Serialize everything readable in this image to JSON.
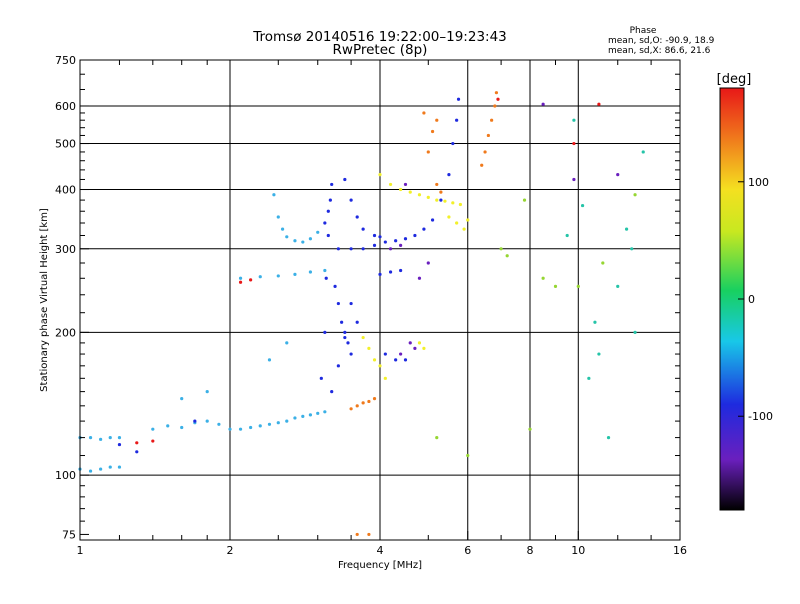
{
  "header": {
    "title_line1": "Tromsø 20140516 19:22:00–19:23:43",
    "title_line2": "RwPretec (8p)",
    "phase_heading": "Phase",
    "phase_stat_o": "mean, sd,O: -90.9, 18.9",
    "phase_stat_x": "mean, sd,X:  86.6, 21.6"
  },
  "colorbar": {
    "unit_label": "[deg]",
    "tick_labels": [
      "100",
      "0",
      "-100"
    ],
    "tick_values": [
      100,
      0,
      -100
    ],
    "range": [
      -180,
      180
    ],
    "colormap": "rainbow: black-purple-blue-cyan-green-yellow-orange-red"
  },
  "chart_data": {
    "type": "scatter",
    "xlabel": "Frequency [MHz]",
    "ylabel": "Stationary phase Virtual Height [km]",
    "x_scale": "log",
    "y_scale": "log",
    "xlim": [
      1,
      16
    ],
    "ylim": [
      73,
      750
    ],
    "x_tick_labels": [
      "1",
      "2",
      "4",
      "6",
      "8",
      "10",
      "16"
    ],
    "x_tick_values": [
      1,
      2,
      4,
      6,
      8,
      10,
      16
    ],
    "x_grid_values": [
      2,
      4,
      6,
      8,
      10
    ],
    "y_tick_labels": [
      "75",
      "100",
      "200",
      "300",
      "400",
      "500",
      "600",
      "750"
    ],
    "y_tick_values": [
      75,
      100,
      200,
      300,
      400,
      500,
      600,
      750
    ],
    "y_grid_values": [
      100,
      200,
      300,
      400,
      500,
      600
    ],
    "grid": true,
    "color_encoding": "phase [deg]",
    "series": [
      {
        "description_color": "#3bb0e6",
        "phase": -60,
        "points": [
          [
            1.0,
            120
          ],
          [
            1.05,
            120
          ],
          [
            1.1,
            119
          ],
          [
            1.15,
            120
          ],
          [
            1.2,
            120
          ],
          [
            1.0,
            103
          ],
          [
            1.05,
            102
          ],
          [
            1.1,
            103
          ],
          [
            1.15,
            104
          ],
          [
            1.2,
            104
          ],
          [
            1.4,
            125
          ],
          [
            1.5,
            127
          ],
          [
            1.6,
            126
          ],
          [
            1.7,
            129
          ],
          [
            1.8,
            130
          ],
          [
            1.9,
            128
          ],
          [
            2.0,
            125
          ],
          [
            2.1,
            125
          ],
          [
            2.2,
            126
          ],
          [
            2.3,
            127
          ],
          [
            2.4,
            128
          ],
          [
            2.5,
            129
          ],
          [
            2.6,
            130
          ],
          [
            2.7,
            132
          ],
          [
            2.8,
            133
          ],
          [
            2.9,
            134
          ],
          [
            3.0,
            135
          ],
          [
            3.1,
            136
          ],
          [
            2.45,
            390
          ],
          [
            2.5,
            350
          ],
          [
            2.55,
            330
          ],
          [
            2.6,
            318
          ],
          [
            2.7,
            312
          ],
          [
            2.8,
            310
          ],
          [
            2.9,
            315
          ],
          [
            3.0,
            325
          ],
          [
            2.1,
            260
          ],
          [
            2.3,
            262
          ],
          [
            2.5,
            263
          ],
          [
            2.7,
            265
          ],
          [
            2.9,
            268
          ],
          [
            3.1,
            270
          ],
          [
            1.6,
            145
          ],
          [
            1.8,
            150
          ],
          [
            2.4,
            175
          ],
          [
            2.6,
            190
          ]
        ]
      },
      {
        "description_color": "#1e2adf",
        "phase": -100,
        "points": [
          [
            3.05,
            160
          ],
          [
            3.1,
            200
          ],
          [
            3.12,
            260
          ],
          [
            3.15,
            320
          ],
          [
            3.18,
            380
          ],
          [
            3.2,
            410
          ],
          [
            3.25,
            250
          ],
          [
            3.3,
            230
          ],
          [
            3.35,
            210
          ],
          [
            3.4,
            200
          ],
          [
            3.45,
            190
          ],
          [
            3.5,
            180
          ],
          [
            3.1,
            340
          ],
          [
            3.15,
            360
          ],
          [
            3.3,
            300
          ],
          [
            3.5,
            300
          ],
          [
            3.7,
            300
          ],
          [
            3.9,
            305
          ],
          [
            4.1,
            310
          ],
          [
            4.3,
            312
          ],
          [
            4.5,
            315
          ],
          [
            4.7,
            320
          ],
          [
            4.9,
            330
          ],
          [
            5.1,
            345
          ],
          [
            5.3,
            380
          ],
          [
            5.5,
            430
          ],
          [
            5.6,
            500
          ],
          [
            5.7,
            560
          ],
          [
            5.75,
            620
          ],
          [
            3.4,
            420
          ],
          [
            3.5,
            380
          ],
          [
            3.6,
            350
          ],
          [
            3.7,
            330
          ],
          [
            3.9,
            320
          ],
          [
            4.0,
            318
          ],
          [
            3.2,
            150
          ],
          [
            3.3,
            170
          ],
          [
            3.4,
            195
          ],
          [
            3.5,
            230
          ],
          [
            3.6,
            210
          ],
          [
            4.0,
            265
          ],
          [
            4.2,
            268
          ],
          [
            4.4,
            270
          ],
          [
            4.1,
            180
          ],
          [
            4.3,
            175
          ],
          [
            4.5,
            175
          ],
          [
            1.3,
            112
          ],
          [
            1.2,
            116
          ],
          [
            1.7,
            130
          ]
        ]
      },
      {
        "description_color": "#f2f02a",
        "phase": 110,
        "points": [
          [
            4.0,
            430
          ],
          [
            4.2,
            410
          ],
          [
            4.4,
            400
          ],
          [
            4.6,
            395
          ],
          [
            4.8,
            390
          ],
          [
            5.0,
            385
          ],
          [
            5.2,
            380
          ],
          [
            5.4,
            378
          ],
          [
            5.6,
            375
          ],
          [
            5.8,
            372
          ],
          [
            6.0,
            345
          ],
          [
            4.1,
            160
          ],
          [
            4.0,
            170
          ],
          [
            3.9,
            175
          ],
          [
            3.8,
            185
          ],
          [
            3.7,
            195
          ],
          [
            5.5,
            350
          ],
          [
            5.7,
            340
          ],
          [
            5.9,
            330
          ],
          [
            4.8,
            190
          ],
          [
            4.9,
            185
          ]
        ]
      },
      {
        "description_color": "#f07a1c",
        "phase": 150,
        "points": [
          [
            3.5,
            138
          ],
          [
            3.6,
            140
          ],
          [
            3.7,
            142
          ],
          [
            3.8,
            143
          ],
          [
            3.9,
            145
          ],
          [
            6.4,
            450
          ],
          [
            6.5,
            480
          ],
          [
            6.6,
            520
          ],
          [
            6.7,
            560
          ],
          [
            6.8,
            600
          ],
          [
            6.85,
            640
          ],
          [
            5.0,
            480
          ],
          [
            5.1,
            530
          ],
          [
            5.2,
            560
          ],
          [
            4.9,
            580
          ],
          [
            3.8,
            75
          ],
          [
            3.6,
            75
          ],
          [
            5.2,
            410
          ],
          [
            5.3,
            395
          ]
        ]
      },
      {
        "description_color": "#e81818",
        "phase": 175,
        "points": [
          [
            1.3,
            117
          ],
          [
            1.4,
            118
          ],
          [
            2.1,
            255
          ],
          [
            2.2,
            258
          ],
          [
            11.0,
            605
          ],
          [
            9.8,
            500
          ],
          [
            6.9,
            620
          ]
        ]
      },
      {
        "description_color": "#6a1fbe",
        "phase": -140,
        "points": [
          [
            4.6,
            190
          ],
          [
            4.7,
            185
          ],
          [
            4.4,
            180
          ],
          [
            4.2,
            300
          ],
          [
            4.4,
            305
          ],
          [
            4.5,
            410
          ],
          [
            4.8,
            260
          ],
          [
            5.0,
            280
          ],
          [
            8.5,
            605
          ],
          [
            12.0,
            430
          ],
          [
            9.8,
            420
          ]
        ]
      },
      {
        "description_color": "#25c4a8",
        "phase": -30,
        "points": [
          [
            12.5,
            330
          ],
          [
            12.8,
            300
          ],
          [
            13.0,
            200
          ],
          [
            11.0,
            180
          ],
          [
            10.5,
            160
          ],
          [
            11.5,
            120
          ],
          [
            9.5,
            320
          ],
          [
            10.2,
            370
          ],
          [
            12.0,
            250
          ],
          [
            10.8,
            210
          ],
          [
            13.5,
            480
          ],
          [
            9.8,
            560
          ]
        ]
      },
      {
        "description_color": "#96d632",
        "phase": 60,
        "points": [
          [
            7.0,
            300
          ],
          [
            7.2,
            290
          ],
          [
            7.8,
            380
          ],
          [
            9.0,
            250
          ],
          [
            8.5,
            260
          ],
          [
            10.0,
            250
          ],
          [
            11.2,
            280
          ],
          [
            13.0,
            390
          ],
          [
            6.0,
            110
          ],
          [
            5.2,
            120
          ],
          [
            8.0,
            125
          ]
        ]
      }
    ]
  }
}
